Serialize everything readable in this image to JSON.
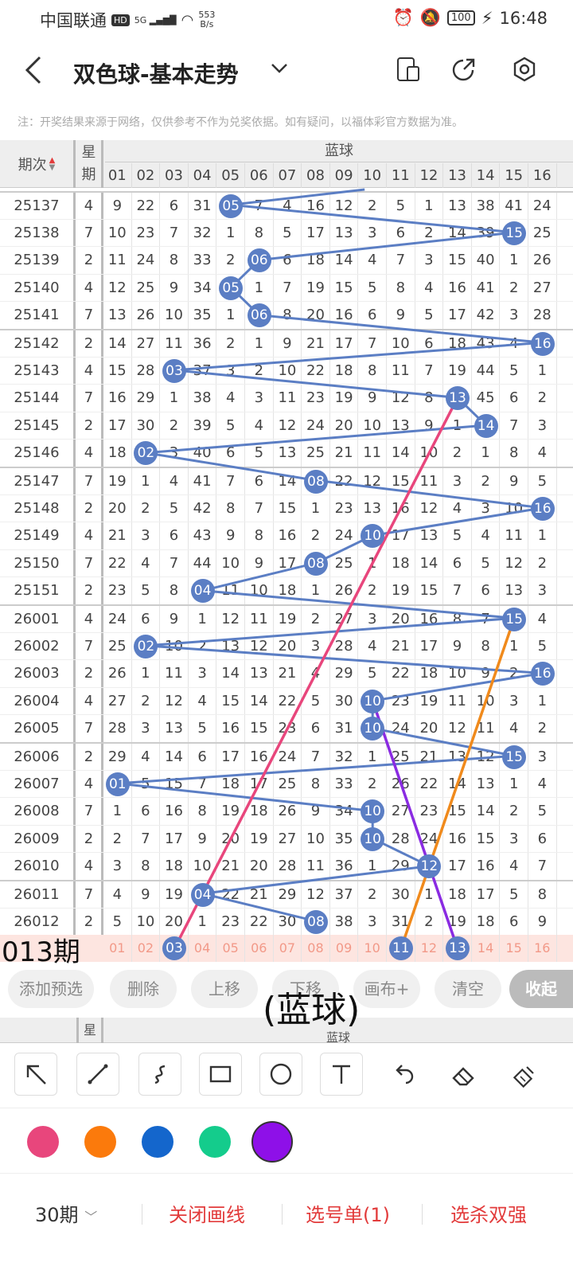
{
  "status": {
    "carrier": "中国联通",
    "hd": "HD",
    "signal": "5G",
    "net_speed_value": "553",
    "net_speed_unit": "B/s",
    "battery": "100",
    "time": "16:48"
  },
  "appbar": {
    "title": "双色球-基本走势"
  },
  "note": "注：开奖结果来源于网络，仅供参考不作为兑奖依据。如有疑问，以福体彩官方数据为准。",
  "table": {
    "header_issue": "期次",
    "header_week_1": "星",
    "header_week_2": "期",
    "header_blue": "蓝球",
    "columns": [
      "01",
      "02",
      "03",
      "04",
      "05",
      "06",
      "07",
      "08",
      "09",
      "10",
      "11",
      "12",
      "13",
      "14",
      "15",
      "16"
    ],
    "rows": [
      {
        "issue": "25137",
        "wk": "4",
        "cells": [
          "9",
          "22",
          "6",
          "31",
          "05",
          "7",
          "4",
          "16",
          "12",
          "2",
          "5",
          "1",
          "13",
          "38",
          "41",
          "24"
        ],
        "hit": 5
      },
      {
        "issue": "25138",
        "wk": "7",
        "cells": [
          "10",
          "23",
          "7",
          "32",
          "1",
          "8",
          "5",
          "17",
          "13",
          "3",
          "6",
          "2",
          "14",
          "39",
          "15",
          "25"
        ],
        "hit": 15
      },
      {
        "issue": "25139",
        "wk": "2",
        "cells": [
          "11",
          "24",
          "8",
          "33",
          "2",
          "06",
          "6",
          "18",
          "14",
          "4",
          "7",
          "3",
          "15",
          "40",
          "1",
          "26"
        ],
        "hit": 6
      },
      {
        "issue": "25140",
        "wk": "4",
        "cells": [
          "12",
          "25",
          "9",
          "34",
          "05",
          "1",
          "7",
          "19",
          "15",
          "5",
          "8",
          "4",
          "16",
          "41",
          "2",
          "27"
        ],
        "hit": 5
      },
      {
        "issue": "25141",
        "wk": "7",
        "cells": [
          "13",
          "26",
          "10",
          "35",
          "1",
          "06",
          "8",
          "20",
          "16",
          "6",
          "9",
          "5",
          "17",
          "42",
          "3",
          "28"
        ],
        "hit": 6
      },
      {
        "issue": "25142",
        "wk": "2",
        "cells": [
          "14",
          "27",
          "11",
          "36",
          "2",
          "1",
          "9",
          "21",
          "17",
          "7",
          "10",
          "6",
          "18",
          "43",
          "4",
          "16"
        ],
        "hit": 16
      },
      {
        "issue": "25143",
        "wk": "4",
        "cells": [
          "15",
          "28",
          "03",
          "37",
          "3",
          "2",
          "10",
          "22",
          "18",
          "8",
          "11",
          "7",
          "19",
          "44",
          "5",
          "1"
        ],
        "hit": 3
      },
      {
        "issue": "25144",
        "wk": "7",
        "cells": [
          "16",
          "29",
          "1",
          "38",
          "4",
          "3",
          "11",
          "23",
          "19",
          "9",
          "12",
          "8",
          "13",
          "45",
          "6",
          "2"
        ],
        "hit": 13
      },
      {
        "issue": "25145",
        "wk": "2",
        "cells": [
          "17",
          "30",
          "2",
          "39",
          "5",
          "4",
          "12",
          "24",
          "20",
          "10",
          "13",
          "9",
          "1",
          "14",
          "7",
          "3"
        ],
        "hit": 14
      },
      {
        "issue": "25146",
        "wk": "4",
        "cells": [
          "18",
          "02",
          "3",
          "40",
          "6",
          "5",
          "13",
          "25",
          "21",
          "11",
          "14",
          "10",
          "2",
          "1",
          "8",
          "4"
        ],
        "hit": 2
      },
      {
        "issue": "25147",
        "wk": "7",
        "cells": [
          "19",
          "1",
          "4",
          "41",
          "7",
          "6",
          "14",
          "08",
          "22",
          "12",
          "15",
          "11",
          "3",
          "2",
          "9",
          "5"
        ],
        "hit": 8
      },
      {
        "issue": "25148",
        "wk": "2",
        "cells": [
          "20",
          "2",
          "5",
          "42",
          "8",
          "7",
          "15",
          "1",
          "23",
          "13",
          "16",
          "12",
          "4",
          "3",
          "10",
          "16"
        ],
        "hit": 16
      },
      {
        "issue": "25149",
        "wk": "4",
        "cells": [
          "21",
          "3",
          "6",
          "43",
          "9",
          "8",
          "16",
          "2",
          "24",
          "10",
          "17",
          "13",
          "5",
          "4",
          "11",
          "1"
        ],
        "hit": 10
      },
      {
        "issue": "25150",
        "wk": "7",
        "cells": [
          "22",
          "4",
          "7",
          "44",
          "10",
          "9",
          "17",
          "08",
          "25",
          "1",
          "18",
          "14",
          "6",
          "5",
          "12",
          "2"
        ],
        "hit": 8
      },
      {
        "issue": "25151",
        "wk": "2",
        "cells": [
          "23",
          "5",
          "8",
          "04",
          "11",
          "10",
          "18",
          "1",
          "26",
          "2",
          "19",
          "15",
          "7",
          "6",
          "13",
          "3"
        ],
        "hit": 4
      },
      {
        "issue": "26001",
        "wk": "4",
        "cells": [
          "24",
          "6",
          "9",
          "1",
          "12",
          "11",
          "19",
          "2",
          "27",
          "3",
          "20",
          "16",
          "8",
          "7",
          "15",
          "4"
        ],
        "hit": 15
      },
      {
        "issue": "26002",
        "wk": "7",
        "cells": [
          "25",
          "02",
          "10",
          "2",
          "13",
          "12",
          "20",
          "3",
          "28",
          "4",
          "21",
          "17",
          "9",
          "8",
          "1",
          "5"
        ],
        "hit": 2
      },
      {
        "issue": "26003",
        "wk": "2",
        "cells": [
          "26",
          "1",
          "11",
          "3",
          "14",
          "13",
          "21",
          "4",
          "29",
          "5",
          "22",
          "18",
          "10",
          "9",
          "2",
          "16"
        ],
        "hit": 16
      },
      {
        "issue": "26004",
        "wk": "4",
        "cells": [
          "27",
          "2",
          "12",
          "4",
          "15",
          "14",
          "22",
          "5",
          "30",
          "10",
          "23",
          "19",
          "11",
          "10",
          "3",
          "1"
        ],
        "hit": 10
      },
      {
        "issue": "26005",
        "wk": "7",
        "cells": [
          "28",
          "3",
          "13",
          "5",
          "16",
          "15",
          "23",
          "6",
          "31",
          "10",
          "24",
          "20",
          "12",
          "11",
          "4",
          "2"
        ],
        "hit": 10
      },
      {
        "issue": "26006",
        "wk": "2",
        "cells": [
          "29",
          "4",
          "14",
          "6",
          "17",
          "16",
          "24",
          "7",
          "32",
          "1",
          "25",
          "21",
          "13",
          "12",
          "15",
          "3"
        ],
        "hit": 15
      },
      {
        "issue": "26007",
        "wk": "4",
        "cells": [
          "01",
          "5",
          "15",
          "7",
          "18",
          "17",
          "25",
          "8",
          "33",
          "2",
          "26",
          "22",
          "14",
          "13",
          "1",
          "4"
        ],
        "hit": 1
      },
      {
        "issue": "26008",
        "wk": "7",
        "cells": [
          "1",
          "6",
          "16",
          "8",
          "19",
          "18",
          "26",
          "9",
          "34",
          "10",
          "27",
          "23",
          "15",
          "14",
          "2",
          "5"
        ],
        "hit": 10
      },
      {
        "issue": "26009",
        "wk": "2",
        "cells": [
          "2",
          "7",
          "17",
          "9",
          "20",
          "19",
          "27",
          "10",
          "35",
          "10",
          "28",
          "24",
          "16",
          "15",
          "3",
          "6"
        ],
        "hit": 10
      },
      {
        "issue": "26010",
        "wk": "4",
        "cells": [
          "3",
          "8",
          "18",
          "10",
          "21",
          "20",
          "28",
          "11",
          "36",
          "1",
          "29",
          "12",
          "17",
          "16",
          "4",
          "7"
        ],
        "hit": 12
      },
      {
        "issue": "26011",
        "wk": "7",
        "cells": [
          "4",
          "9",
          "19",
          "04",
          "22",
          "21",
          "29",
          "12",
          "37",
          "2",
          "30",
          "1",
          "18",
          "17",
          "5",
          "8"
        ],
        "hit": 4
      },
      {
        "issue": "26012",
        "wk": "2",
        "cells": [
          "5",
          "10",
          "20",
          "1",
          "23",
          "22",
          "30",
          "08",
          "38",
          "3",
          "31",
          "2",
          "19",
          "18",
          "6",
          "9"
        ],
        "hit": 8
      }
    ],
    "predict_label": "013期",
    "predict_cells": [
      "01",
      "02",
      "03",
      "04",
      "05",
      "06",
      "07",
      "08",
      "09",
      "10",
      "11",
      "12",
      "13",
      "14",
      "15",
      "16"
    ],
    "predict_balls": [
      3,
      11,
      13
    ]
  },
  "actions": [
    "添加预选",
    "删除",
    "上移",
    "下移",
    "画布+",
    "清空"
  ],
  "collapse_label": "收起",
  "stroke_label": "(蓝球)",
  "footer_header": {
    "week": "星",
    "blue": "蓝球"
  },
  "tools": [
    "arrow-tool-icon",
    "line-tool-icon",
    "curve-tool-icon",
    "rectangle-tool-icon",
    "circle-tool-icon",
    "text-tool-icon",
    "undo-icon",
    "eraser-icon",
    "clear-brush-icon"
  ],
  "colors": [
    "#e8467c",
    "#fb7a0c",
    "#1466cc",
    "#14cc8c",
    "#8e10e8"
  ],
  "selected_color_index": 4,
  "line_colors": {
    "trend": "#5b7ec4",
    "pink": "#e8467c",
    "orange": "#f08a1c",
    "purple": "#8a2be2"
  },
  "bottom": {
    "period": "30期",
    "close_draw": "关闭画线",
    "selection": "选号单(1)",
    "kill": "选杀双强"
  }
}
